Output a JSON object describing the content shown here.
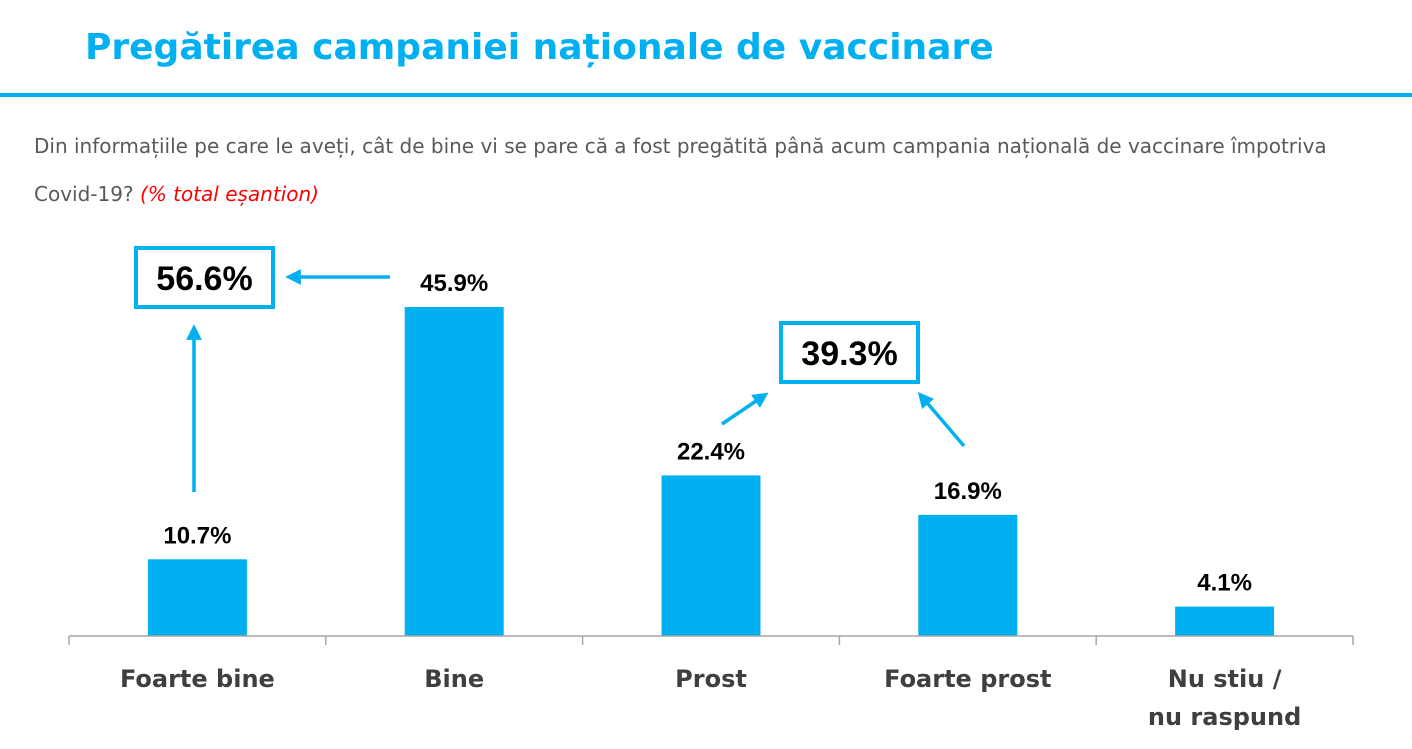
{
  "header": {
    "title": "Pregătirea campaniei naționale de vaccinare",
    "question": "Din informațiile pe care le aveți, cât de bine vi se pare că a fost pregătită până acum campania națională de vaccinare împotriva Covid-19?",
    "sample_note": "(% total eșantion)"
  },
  "colors": {
    "accent": "#00B0F0",
    "text": "#000000",
    "muted_text": "#595959",
    "note": "#FF0000",
    "axis": "#A6A6A6",
    "label_text": "#3F3F3F"
  },
  "chart_data": {
    "type": "bar",
    "categories": [
      "Foarte bine",
      "Bine",
      "Prost",
      "Foarte prost",
      "Nu stiu / nu raspund"
    ],
    "values": [
      10.7,
      45.9,
      22.4,
      16.9,
      4.1
    ],
    "value_labels": [
      "10.7%",
      "45.9%",
      "22.4%",
      "16.9%",
      "4.1%"
    ],
    "ylim": [
      0,
      50
    ],
    "grid": false,
    "legend": "none",
    "annotations": [
      {
        "label": "56.6%",
        "value": 56.6,
        "combines": [
          "Foarte bine",
          "Bine"
        ]
      },
      {
        "label": "39.3%",
        "value": 39.3,
        "combines": [
          "Prost",
          "Foarte prost"
        ]
      }
    ]
  }
}
